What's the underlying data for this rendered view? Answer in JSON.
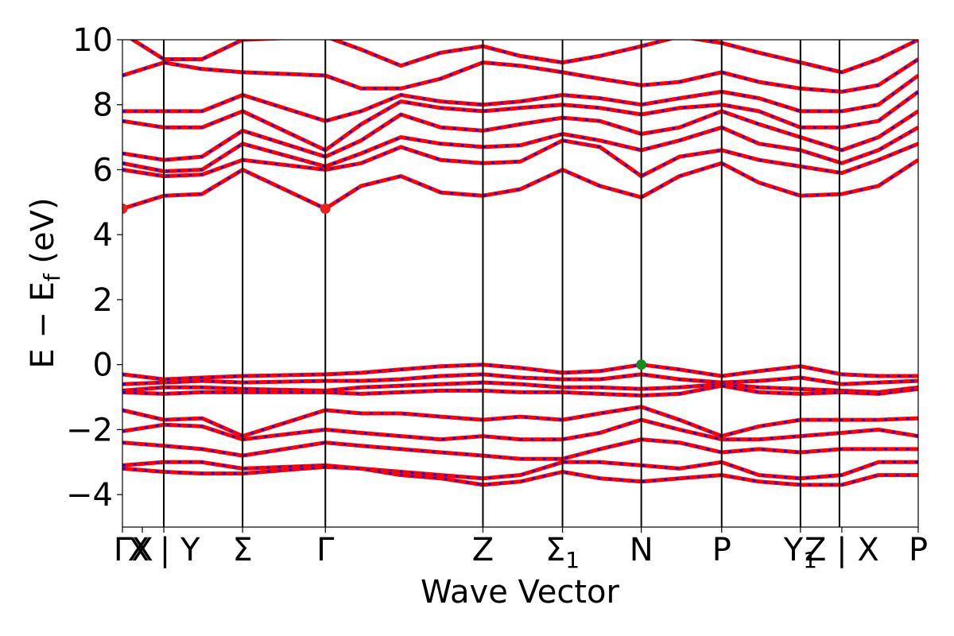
{
  "chart_data": {
    "type": "line",
    "title": "",
    "xlabel": "Wave Vector",
    "ylabel_parts": {
      "main": "E − E",
      "sub": "f",
      "unit": " (eV)"
    },
    "ylim": [
      -5,
      10
    ],
    "yticks": [
      -4,
      -2,
      0,
      2,
      4,
      6,
      8,
      10
    ],
    "ytick_labels": [
      "−4",
      "−2",
      "0",
      "2",
      "4",
      "6",
      "8",
      "10"
    ],
    "xlim": [
      0,
      1
    ],
    "kpoints": [
      {
        "x": 0.0,
        "label": "Γ",
        "sub": ""
      },
      {
        "x": 0.025,
        "label": "X",
        "sub": ""
      },
      {
        "x": 0.052,
        "label": "X | Y",
        "sub": ""
      },
      {
        "x": 0.151,
        "label": "Σ",
        "sub": ""
      },
      {
        "x": 0.255,
        "label": "Γ",
        "sub": ""
      },
      {
        "x": 0.453,
        "label": "Z",
        "sub": ""
      },
      {
        "x": 0.553,
        "label": "Σ",
        "sub": "1"
      },
      {
        "x": 0.652,
        "label": "N",
        "sub": ""
      },
      {
        "x": 0.753,
        "label": "P",
        "sub": ""
      },
      {
        "x": 0.852,
        "label": "Y",
        "sub": "1"
      },
      {
        "x": 0.904,
        "label": "Z | X",
        "sub": ""
      },
      {
        "x": 1.0,
        "label": "P",
        "sub": ""
      }
    ],
    "vlines": [
      0.052,
      0.151,
      0.255,
      0.453,
      0.553,
      0.652,
      0.753,
      0.852,
      0.901
    ],
    "conduction_bands": [
      [
        4.8,
        5.2,
        5.25,
        6.0,
        4.8,
        5.5,
        5.8,
        5.3,
        5.2,
        5.4,
        6.0,
        5.5,
        5.15,
        5.8,
        6.2,
        5.6,
        5.2,
        5.25,
        5.5,
        6.3
      ],
      [
        6.0,
        5.8,
        5.85,
        6.3,
        6.0,
        6.2,
        6.7,
        6.3,
        6.2,
        6.25,
        6.9,
        6.7,
        5.8,
        6.4,
        6.6,
        6.3,
        6.1,
        5.9,
        6.3,
        6.8
      ],
      [
        6.2,
        5.95,
        6.0,
        6.8,
        6.1,
        6.5,
        7.0,
        6.8,
        6.7,
        6.75,
        7.1,
        6.9,
        6.6,
        6.9,
        7.3,
        6.8,
        6.6,
        6.2,
        6.6,
        7.3
      ],
      [
        6.5,
        6.3,
        6.4,
        7.2,
        6.4,
        6.9,
        7.7,
        7.3,
        7.2,
        7.4,
        7.6,
        7.5,
        7.1,
        7.3,
        7.8,
        7.4,
        7.0,
        6.6,
        7.0,
        7.8
      ],
      [
        7.5,
        7.3,
        7.3,
        7.8,
        6.6,
        7.4,
        8.1,
        7.9,
        7.8,
        7.9,
        8.0,
        7.9,
        7.7,
        7.9,
        8.0,
        7.8,
        7.3,
        7.3,
        7.5,
        8.4
      ],
      [
        7.8,
        7.8,
        7.8,
        8.3,
        7.5,
        7.8,
        8.3,
        8.1,
        8.0,
        8.1,
        8.3,
        8.2,
        8.0,
        8.2,
        8.4,
        8.2,
        7.8,
        7.8,
        8.0,
        8.9
      ],
      [
        8.9,
        9.3,
        9.1,
        9.0,
        8.9,
        8.5,
        8.5,
        8.8,
        9.3,
        9.2,
        9.0,
        8.8,
        8.6,
        8.7,
        9.0,
        8.7,
        8.5,
        8.4,
        8.6,
        9.4
      ],
      [
        10.2,
        9.4,
        9.4,
        10.0,
        10.1,
        9.7,
        9.2,
        9.6,
        9.8,
        9.5,
        9.3,
        9.5,
        9.8,
        10.1,
        9.9,
        9.6,
        9.3,
        9.0,
        9.4,
        10.0
      ]
    ],
    "valence_bands": [
      [
        -0.3,
        -0.45,
        -0.4,
        -0.35,
        -0.3,
        -0.25,
        -0.15,
        -0.05,
        0.0,
        -0.1,
        -0.25,
        -0.2,
        0.0,
        -0.15,
        -0.35,
        -0.2,
        -0.05,
        -0.3,
        -0.35,
        -0.35
      ],
      [
        -0.6,
        -0.55,
        -0.5,
        -0.55,
        -0.5,
        -0.5,
        -0.45,
        -0.35,
        -0.3,
        -0.4,
        -0.45,
        -0.45,
        -0.3,
        -0.45,
        -0.55,
        -0.5,
        -0.4,
        -0.6,
        -0.55,
        -0.5
      ],
      [
        -0.8,
        -0.7,
        -0.7,
        -0.75,
        -0.8,
        -0.7,
        -0.65,
        -0.6,
        -0.55,
        -0.6,
        -0.7,
        -0.7,
        -0.75,
        -0.7,
        -0.6,
        -0.7,
        -0.75,
        -0.8,
        -0.85,
        -0.7
      ],
      [
        -0.85,
        -0.9,
        -0.85,
        -0.85,
        -0.85,
        -0.9,
        -0.85,
        -0.8,
        -0.8,
        -0.85,
        -0.85,
        -0.9,
        -0.95,
        -0.9,
        -0.65,
        -0.85,
        -0.9,
        -0.85,
        -0.9,
        -0.75
      ],
      [
        -1.4,
        -1.7,
        -1.65,
        -2.2,
        -1.4,
        -1.5,
        -1.5,
        -1.6,
        -1.7,
        -1.6,
        -1.7,
        -1.5,
        -1.3,
        -1.7,
        -2.2,
        -1.9,
        -1.7,
        -1.7,
        -1.7,
        -1.65
      ],
      [
        -2.05,
        -1.85,
        -1.9,
        -2.3,
        -2.0,
        -2.1,
        -2.2,
        -2.3,
        -2.2,
        -2.3,
        -2.3,
        -2.1,
        -1.7,
        -2.0,
        -2.3,
        -2.3,
        -2.2,
        -2.1,
        -2.0,
        -2.2
      ],
      [
        -2.4,
        -2.5,
        -2.6,
        -2.8,
        -2.4,
        -2.5,
        -2.6,
        -2.7,
        -2.8,
        -2.9,
        -2.9,
        -2.6,
        -2.3,
        -2.4,
        -2.7,
        -2.6,
        -2.7,
        -2.6,
        -2.6,
        -2.6
      ],
      [
        -3.1,
        -3.0,
        -3.0,
        -3.2,
        -3.1,
        -3.2,
        -3.3,
        -3.4,
        -3.5,
        -3.4,
        -3.0,
        -3.0,
        -3.1,
        -3.2,
        -3.0,
        -3.4,
        -3.5,
        -3.4,
        -3.0,
        -3.0
      ],
      [
        -3.2,
        -3.3,
        -3.35,
        -3.35,
        -3.15,
        -3.2,
        -3.4,
        -3.5,
        -3.7,
        -3.6,
        -3.3,
        -3.5,
        -3.6,
        -3.5,
        -3.4,
        -3.6,
        -3.7,
        -3.7,
        -3.4,
        -3.4
      ]
    ],
    "band_x": [
      0.0,
      0.052,
      0.1,
      0.151,
      0.255,
      0.3,
      0.35,
      0.4,
      0.453,
      0.5,
      0.553,
      0.6,
      0.652,
      0.7,
      0.753,
      0.8,
      0.852,
      0.904,
      0.95,
      1.0
    ],
    "markers": [
      {
        "x": 0.0,
        "y": 4.8,
        "color": "#e8231f"
      },
      {
        "x": 0.255,
        "y": 4.8,
        "color": "#e8231f"
      },
      {
        "x": 0.652,
        "y": 0.0,
        "color": "#1a8a1a"
      }
    ],
    "colors": {
      "band_red": "#ff0000",
      "band_blue": "#0000ff",
      "axis": "#000000"
    }
  }
}
